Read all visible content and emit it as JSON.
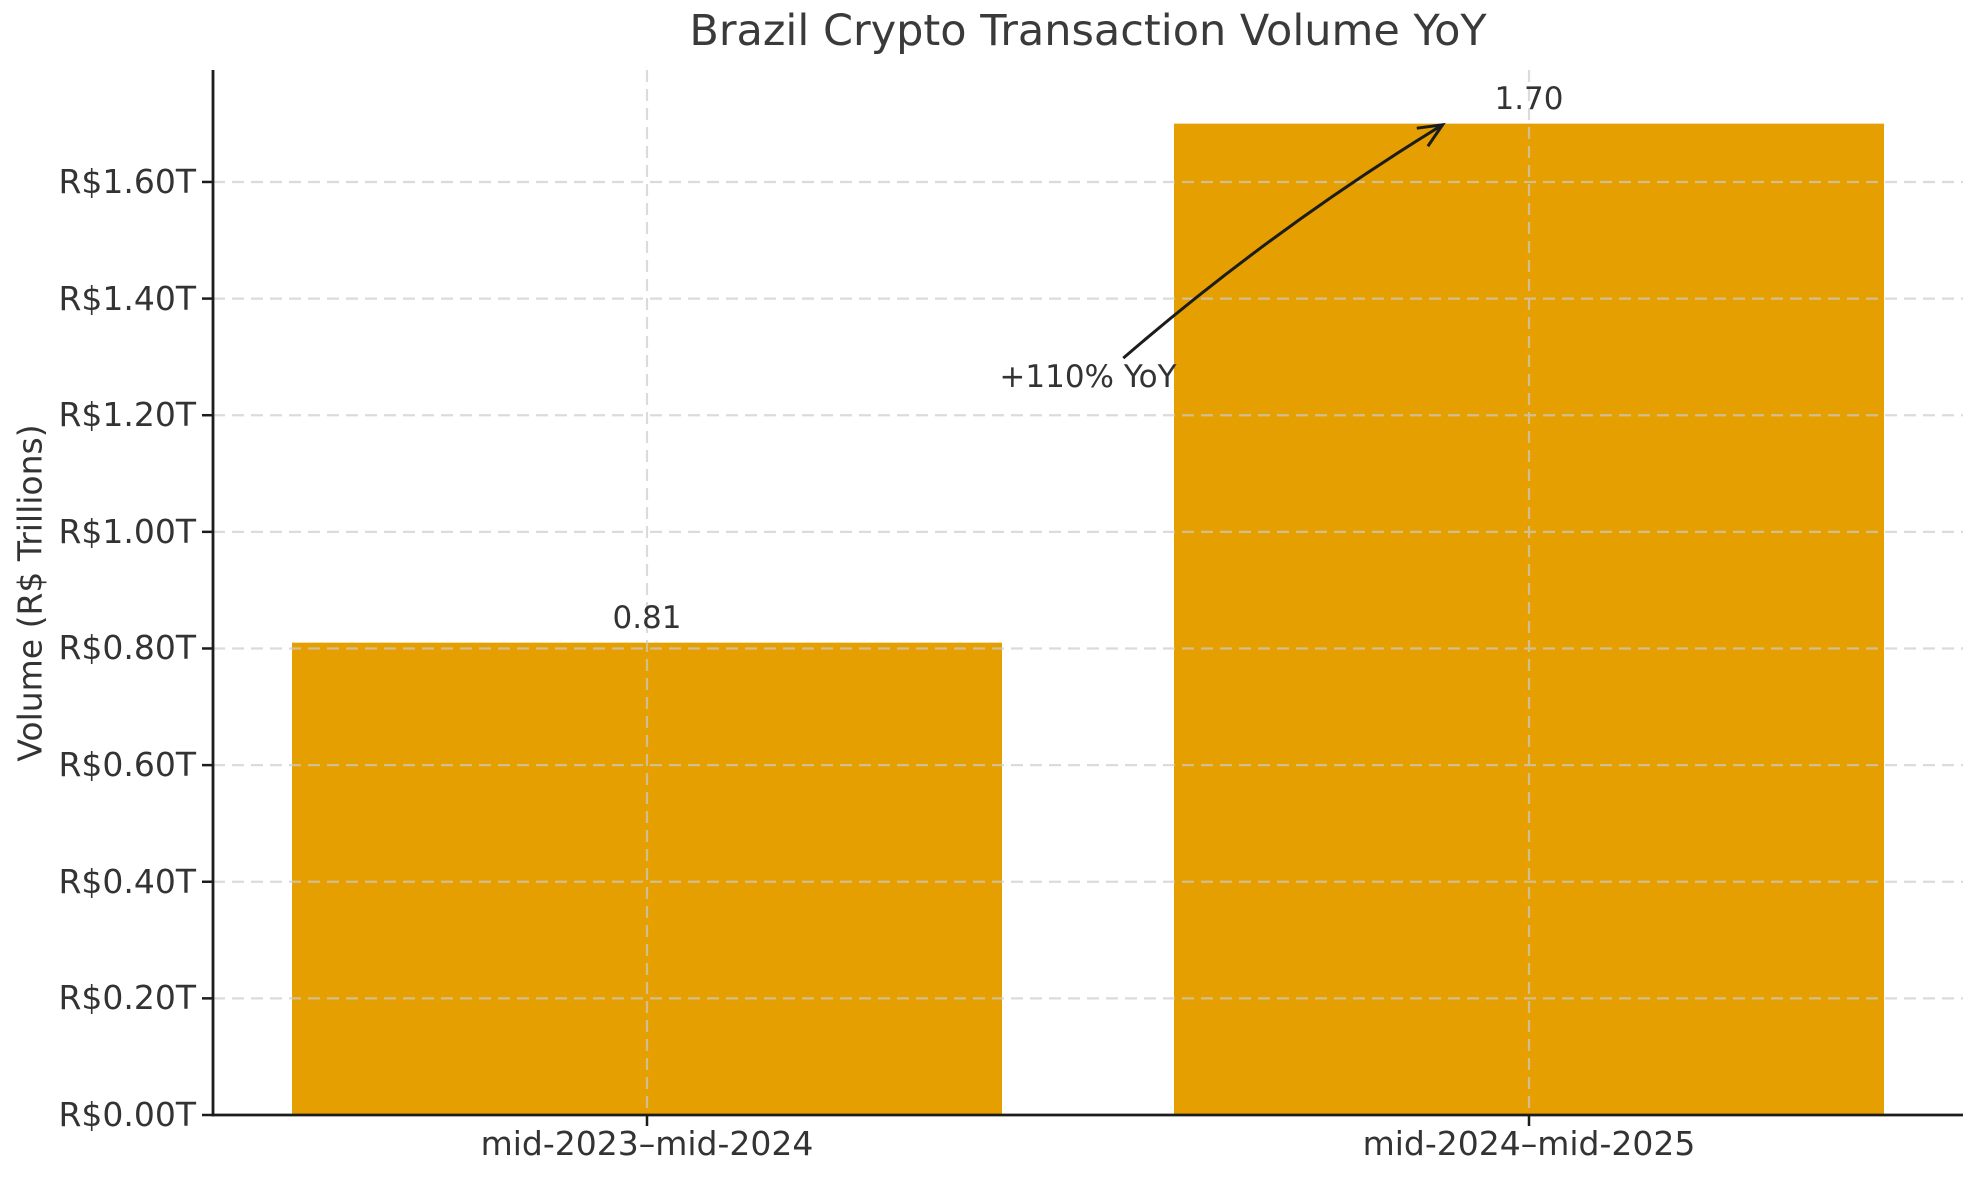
{
  "chart_data": {
    "type": "bar",
    "title": "Brazil Crypto Transaction Volume YoY",
    "xlabel": "",
    "ylabel": "Volume (R$ Trillions)",
    "categories": [
      "mid-2023–mid-2024",
      "mid-2024–mid-2025"
    ],
    "values": [
      0.81,
      1.7
    ],
    "bar_labels": [
      "0.81",
      "1.70"
    ],
    "ylim": [
      0,
      1.792
    ],
    "yticks": [
      0,
      0.2,
      0.4,
      0.6,
      0.8,
      1.0,
      1.2,
      1.4,
      1.6
    ],
    "ytick_labels": [
      "R$0.00T",
      "R$0.20T",
      "R$0.40T",
      "R$0.60T",
      "R$0.80T",
      "R$1.00T",
      "R$1.20T",
      "R$1.40T",
      "R$1.60T"
    ],
    "grid": {
      "horizontal": true,
      "vertical": true,
      "style": "dashed",
      "above_bars": true
    },
    "legend": null,
    "annotation": {
      "text": "+110% YoY",
      "text_xy": [
        0.5,
        1.3
      ],
      "arrow_from": [
        0.54,
        1.298
      ],
      "arrow_to": [
        0.902,
        1.698
      ]
    },
    "colors": {
      "bar": "#E69F00",
      "text": "#333333",
      "title": "#3a3a3a",
      "spine": "#1c1c1c",
      "grid": "#cccccc",
      "arrow": "#1c1c1c"
    }
  }
}
